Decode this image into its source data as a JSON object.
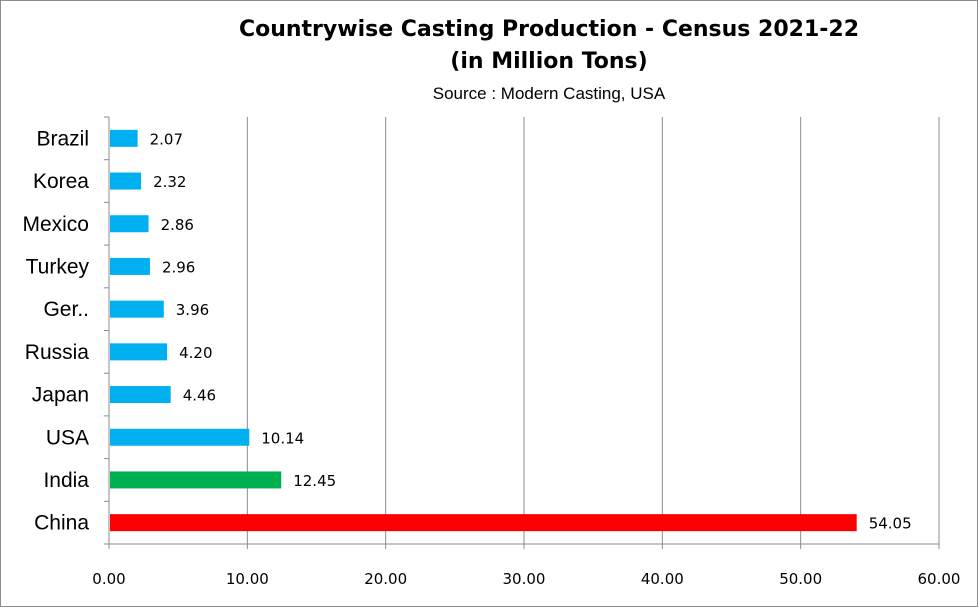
{
  "chart_data": {
    "type": "bar",
    "orientation": "horizontal",
    "title_lines": [
      "Countrywise Casting Production - Census 2021-22",
      "(in Million Tons)"
    ],
    "subtitle": "Source : Modern Casting, USA",
    "categories": [
      "Brazil",
      "Korea",
      "Mexico",
      "Turkey",
      "Ger..",
      "Russia",
      "Japan",
      "USA",
      "India",
      "China"
    ],
    "values": [
      2.07,
      2.32,
      2.86,
      2.96,
      3.96,
      4.2,
      4.46,
      10.14,
      12.45,
      54.05
    ],
    "value_labels": [
      "2.07",
      "2.32",
      "2.86",
      "2.96",
      "3.96",
      "4.20",
      "4.46",
      "10.14",
      "12.45",
      "54.05"
    ],
    "bar_colors": [
      "#00b0f0",
      "#00b0f0",
      "#00b0f0",
      "#00b0f0",
      "#00b0f0",
      "#00b0f0",
      "#00b0f0",
      "#00b0f0",
      "#00b050",
      "#ff0000"
    ],
    "xlim": [
      0,
      60
    ],
    "xticks": [
      0,
      10,
      20,
      30,
      40,
      50,
      60
    ],
    "xtick_labels": [
      "0.00",
      "10.00",
      "20.00",
      "30.00",
      "40.00",
      "50.00",
      "60.00"
    ],
    "grid": "vertical",
    "legend": "none",
    "xlabel": "",
    "ylabel": ""
  }
}
